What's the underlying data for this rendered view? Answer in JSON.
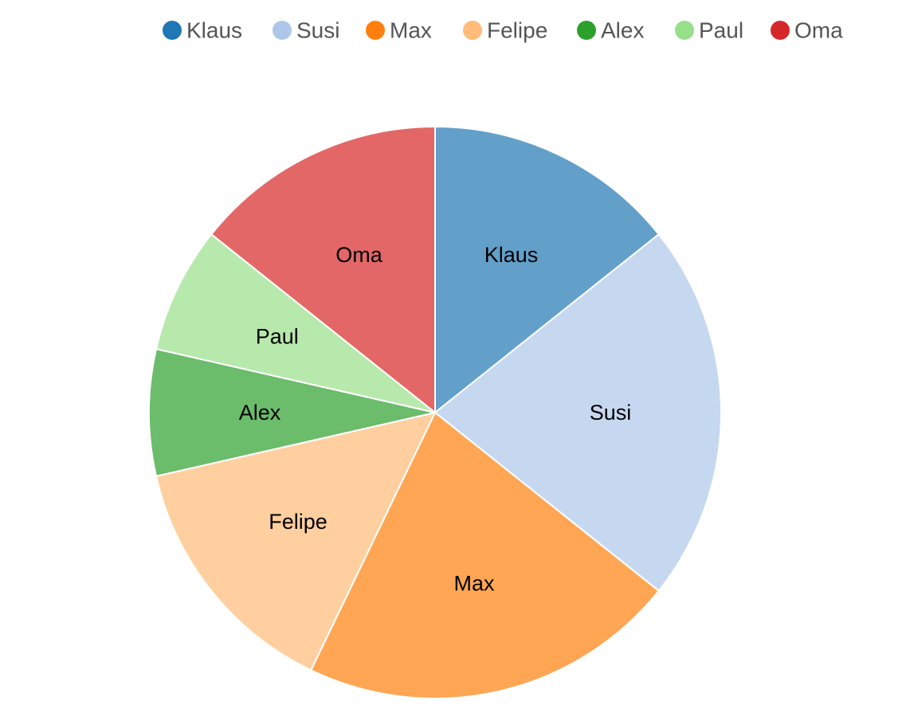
{
  "chart_data": {
    "type": "pie",
    "title": "",
    "legend_position": "top-right",
    "start_angle_deg": 0,
    "direction": "clockwise",
    "slices": [
      {
        "name": "Klaus",
        "value": 2,
        "legend_color": "#1f77b4",
        "slice_color": "#62a0ca"
      },
      {
        "name": "Susi",
        "value": 3,
        "legend_color": "#aec7e8",
        "slice_color": "#c6d8f0"
      },
      {
        "name": "Max",
        "value": 3,
        "legend_color": "#ff7f0e",
        "slice_color": "#ffa654"
      },
      {
        "name": "Felipe",
        "value": 2,
        "legend_color": "#ffbb78",
        "slice_color": "#ffcf9f"
      },
      {
        "name": "Alex",
        "value": 1,
        "legend_color": "#2ca02c",
        "slice_color": "#6bbc6b"
      },
      {
        "name": "Paul",
        "value": 1,
        "legend_color": "#98df8a",
        "slice_color": "#b7e9ad"
      },
      {
        "name": "Oma",
        "value": 2,
        "legend_color": "#d62728",
        "slice_color": "#e36767"
      }
    ]
  }
}
